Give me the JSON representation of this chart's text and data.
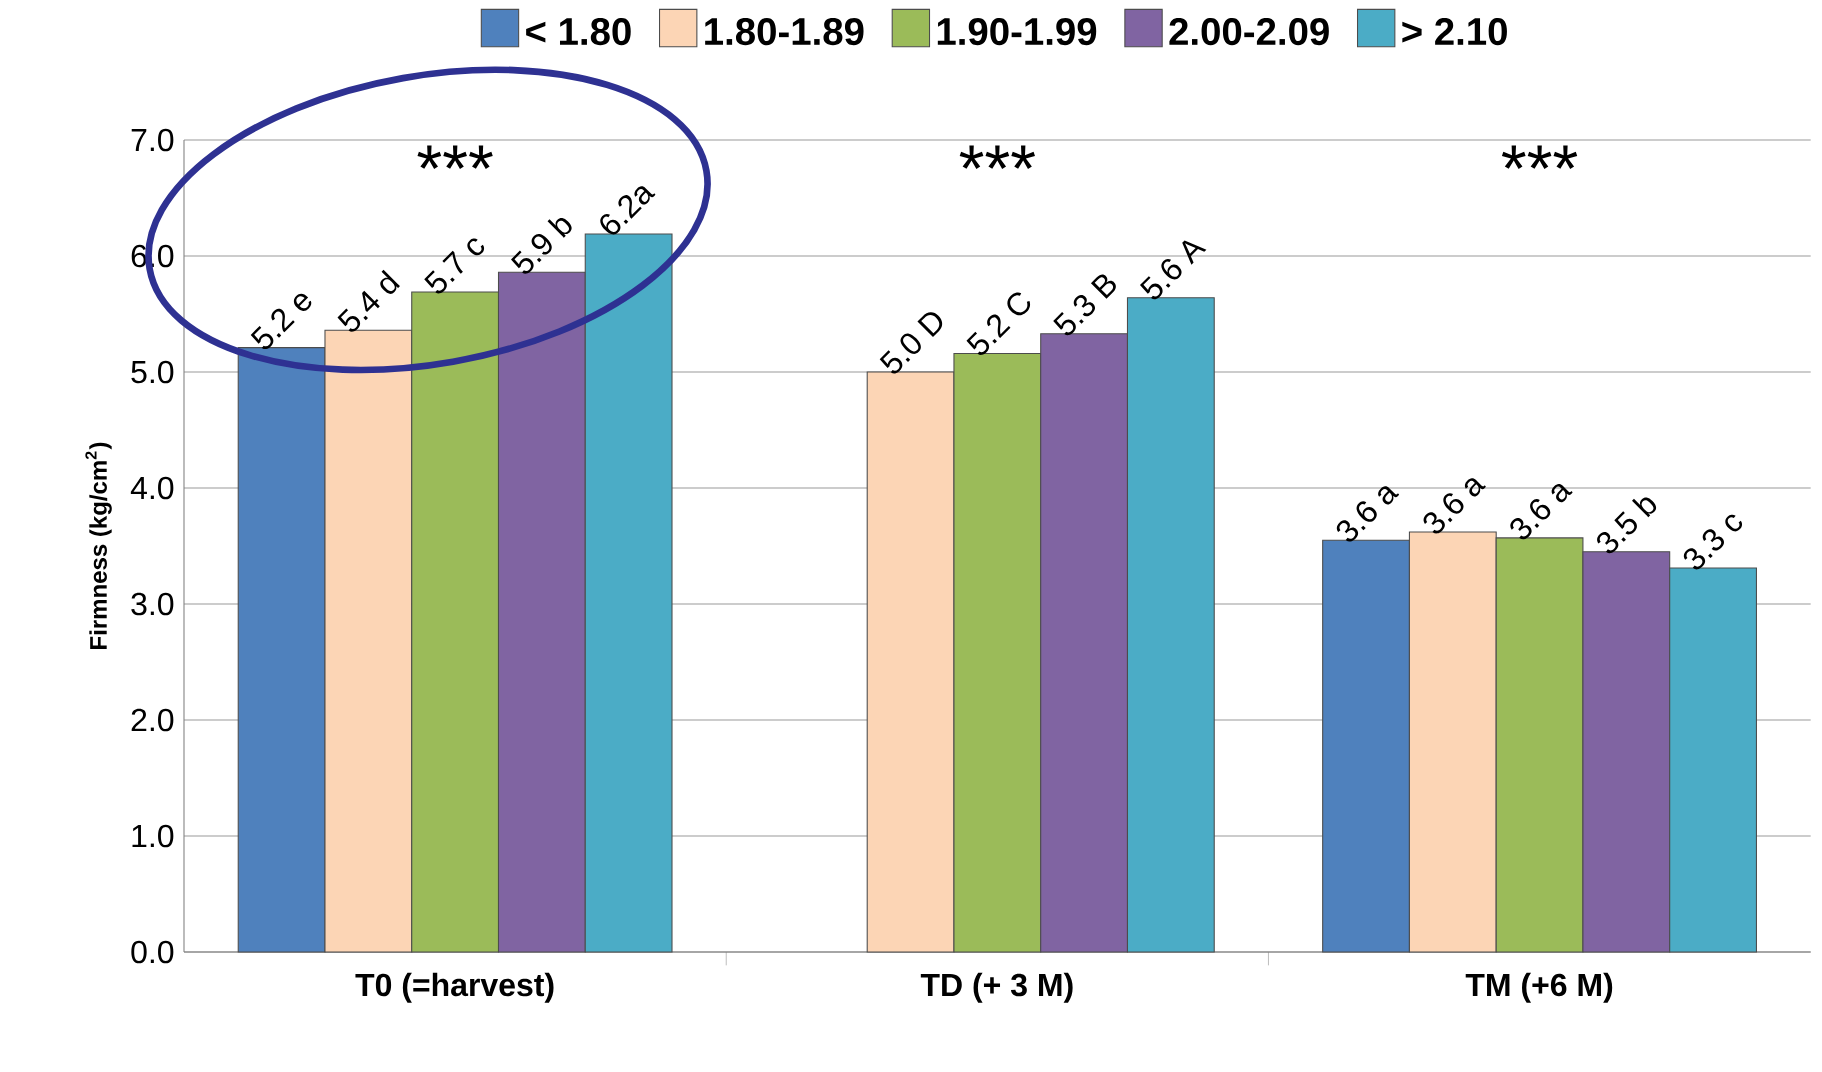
{
  "chart_data": {
    "type": "bar",
    "ylabel": "Firmness (kg/cm$^{2}$)",
    "categories": [
      "T0 (=harvest)",
      "TD (+ 3 M)",
      "TM (+6 M)"
    ],
    "series": [
      {
        "name": "< 1.80",
        "color": "#4f81bd",
        "values": [
          5.21,
          null,
          3.55
        ],
        "value_labels": [
          "5.2 e",
          null,
          "3.6 a"
        ]
      },
      {
        "name": "1.80-1.89",
        "color": "#fcd5b5",
        "values": [
          5.36,
          5.0,
          3.62
        ],
        "value_labels": [
          "5.4 d",
          "5.0 D",
          "3.6 a"
        ]
      },
      {
        "name": "1.90-1.99",
        "color": "#9bbb59",
        "values": [
          5.69,
          5.16,
          3.57
        ],
        "value_labels": [
          "5.7 c",
          "5.2 C",
          "3.6 a"
        ]
      },
      {
        "name": "2.00-2.09",
        "color": "#8064a2",
        "values": [
          5.86,
          5.33,
          3.45
        ],
        "value_labels": [
          "5.9 b",
          "5.3 B",
          "3.5 b"
        ]
      },
      {
        "name": "> 2.10",
        "color": "#4bacc6",
        "values": [
          6.19,
          5.64,
          3.31
        ],
        "value_labels": [
          "6.2a",
          "5.6 A",
          "3.3 c"
        ]
      }
    ],
    "annotations": [
      "***",
      "***",
      "***"
    ],
    "ylim": [
      0,
      7
    ],
    "yticks": [
      {
        "value": 0,
        "label": "0.0"
      },
      {
        "value": 1,
        "label": "1.0"
      },
      {
        "value": 2,
        "label": "2.0"
      },
      {
        "value": 3,
        "label": "3.0"
      },
      {
        "value": 4,
        "label": "4.0"
      },
      {
        "value": 5,
        "label": "5.0"
      },
      {
        "value": 6,
        "label": "6.0"
      },
      {
        "value": 7,
        "label": "7.0"
      }
    ],
    "grid": "y",
    "legend": "top"
  }
}
